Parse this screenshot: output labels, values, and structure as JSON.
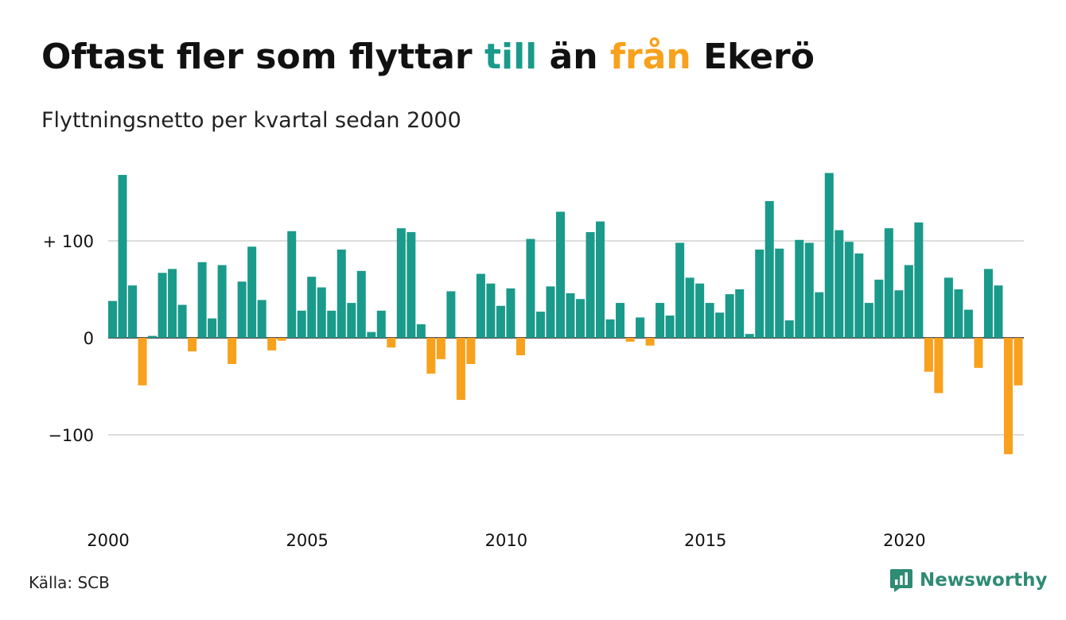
{
  "header": {
    "title_parts": [
      "Oftast fler som flyttar ",
      "till",
      " än ",
      "från",
      " Ekerö"
    ],
    "subtitle": "Flyttningsnetto per kvartal sedan 2000"
  },
  "footer": {
    "source": "Källa: SCB",
    "brand": "Newsworthy",
    "brand_icon": "newsworthy-logo-icon"
  },
  "colors": {
    "positive": "#1a9a8a",
    "negative": "#f7a11c",
    "text": "#111111",
    "grid": "#dddddd",
    "brand": "#2e8b74"
  },
  "chart_data": {
    "type": "bar",
    "title": "Oftast fler som flyttar till än från Ekerö",
    "subtitle": "Flyttningsnetto per kvartal sedan 2000",
    "xlabel": "",
    "ylabel": "",
    "ylim": [
      -150,
      175
    ],
    "x_range": [
      2000.0,
      2023.0
    ],
    "yticks": [
      {
        "value": 100,
        "label": "+ 100"
      },
      {
        "value": 0,
        "label": "0"
      },
      {
        "value": -100,
        "label": "−100"
      }
    ],
    "xticks": [
      {
        "value": 2000,
        "label": "2000"
      },
      {
        "value": 2005,
        "label": "2005"
      },
      {
        "value": 2010,
        "label": "2010"
      },
      {
        "value": 2015,
        "label": "2015"
      },
      {
        "value": 2020,
        "label": "2020"
      }
    ],
    "grid": true,
    "legend": "none",
    "start": "2000 Q1",
    "frequency": "quarterly",
    "values": [
      38,
      168,
      54,
      -49,
      2,
      67,
      71,
      34,
      -14,
      78,
      20,
      75,
      -27,
      58,
      94,
      39,
      -13,
      -3,
      110,
      28,
      63,
      52,
      28,
      91,
      36,
      69,
      6,
      28,
      -10,
      113,
      109,
      14,
      -37,
      -22,
      48,
      -64,
      -27,
      66,
      56,
      33,
      51,
      -18,
      102,
      27,
      53,
      130,
      46,
      40,
      109,
      120,
      19,
      36,
      -4,
      21,
      -8,
      36,
      23,
      98,
      62,
      56,
      36,
      26,
      45,
      50,
      4,
      91,
      141,
      92,
      18,
      101,
      98,
      47,
      170,
      111,
      99,
      87,
      36,
      60,
      113,
      49,
      75,
      119,
      -35,
      -57,
      62,
      50,
      29,
      -31,
      71,
      54,
      -120,
      -49
    ]
  }
}
